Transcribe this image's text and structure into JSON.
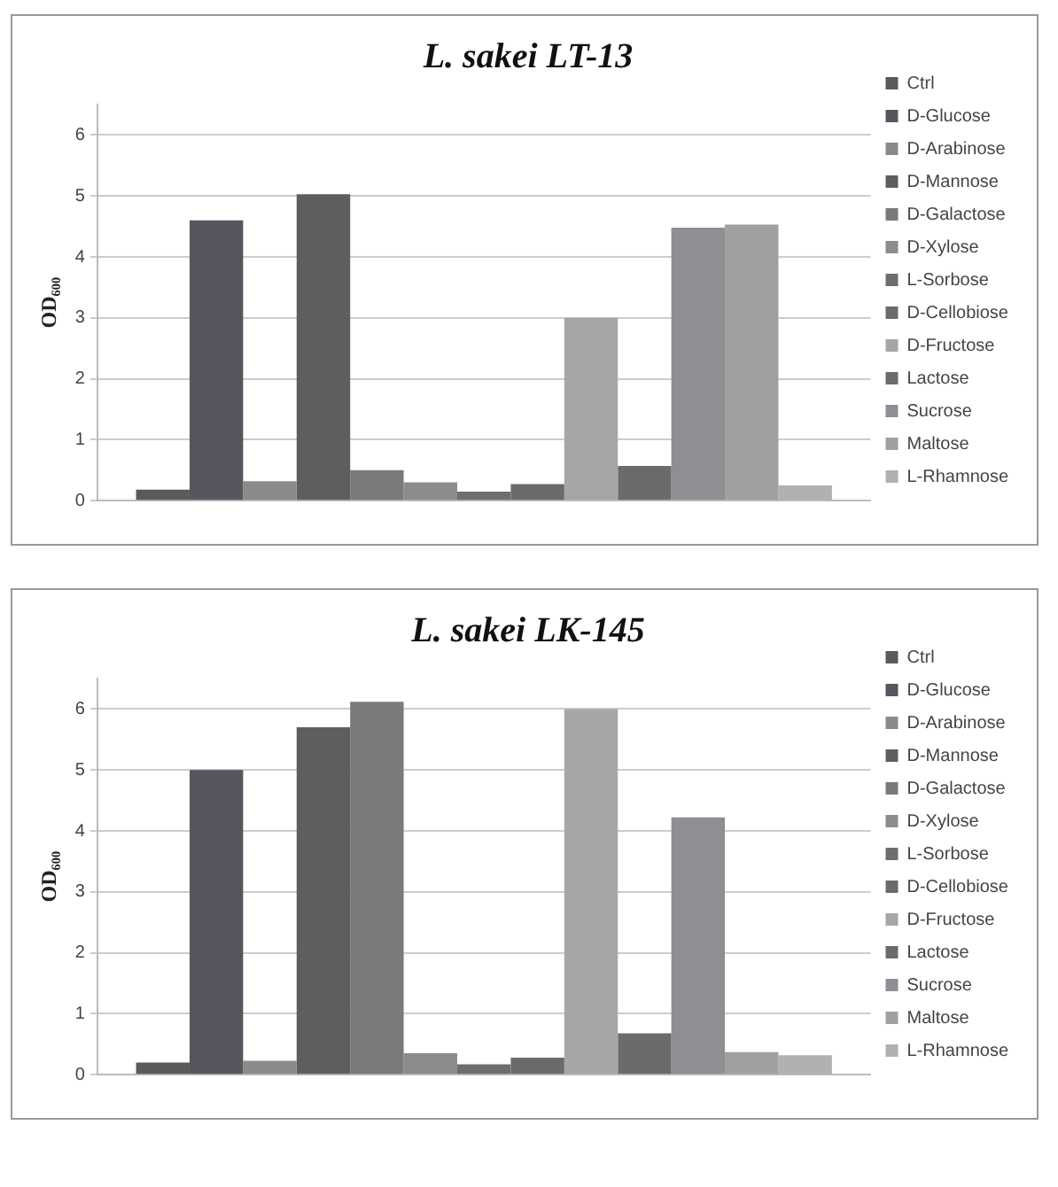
{
  "chart_data": [
    {
      "type": "bar",
      "title": "L. sakei LT-13",
      "ylabel": "OD₆₀₀",
      "categories": [
        null
      ],
      "ylim": [
        0,
        6.5
      ],
      "yticks": [
        0,
        1,
        2,
        3,
        4,
        5,
        6
      ],
      "grid": "y",
      "legend": "right",
      "series": [
        {
          "name": "Ctrl",
          "color": "#5a5a5a",
          "values": [
            0.18
          ]
        },
        {
          "name": "D-Glucose",
          "color": "#56565e",
          "values": [
            4.6
          ]
        },
        {
          "name": "D-Arabinose",
          "color": "#8a8a8a",
          "values": [
            0.32
          ]
        },
        {
          "name": "D-Mannose",
          "color": "#5e5e5e",
          "values": [
            5.03
          ]
        },
        {
          "name": "D-Galactose",
          "color": "#7a7a7a",
          "values": [
            0.5
          ]
        },
        {
          "name": "D-Xylose",
          "color": "#8c8c8c",
          "values": [
            0.3
          ]
        },
        {
          "name": "L-Sorbose",
          "color": "#6e6e6e",
          "values": [
            0.15
          ]
        },
        {
          "name": "D-Cellobiose",
          "color": "#6a6a6a",
          "values": [
            0.27
          ]
        },
        {
          "name": "D-Fructose",
          "color": "#a6a6a6",
          "values": [
            3.0
          ]
        },
        {
          "name": "Lactose",
          "color": "#6b6b6b",
          "values": [
            0.57
          ]
        },
        {
          "name": "Sucrose",
          "color": "#8e8e94",
          "values": [
            4.48
          ]
        },
        {
          "name": "Maltose",
          "color": "#a0a0a0",
          "values": [
            4.53
          ]
        },
        {
          "name": "L-Rhamnose",
          "color": "#b0b0b0",
          "values": [
            0.25
          ]
        }
      ]
    },
    {
      "type": "bar",
      "title": "L. sakei LK-145",
      "ylabel": "OD₆₀₀",
      "categories": [
        null
      ],
      "ylim": [
        0,
        6.5
      ],
      "yticks": [
        0,
        1,
        2,
        3,
        4,
        5,
        6
      ],
      "grid": "y",
      "legend": "right",
      "series": [
        {
          "name": "Ctrl",
          "color": "#5a5a5a",
          "values": [
            0.2
          ]
        },
        {
          "name": "D-Glucose",
          "color": "#56565e",
          "values": [
            5.0
          ]
        },
        {
          "name": "D-Arabinose",
          "color": "#8a8a8a",
          "values": [
            0.23
          ]
        },
        {
          "name": "D-Mannose",
          "color": "#5e5e5e",
          "values": [
            5.7
          ]
        },
        {
          "name": "D-Galactose",
          "color": "#7a7a7a",
          "values": [
            6.12
          ]
        },
        {
          "name": "D-Xylose",
          "color": "#8c8c8c",
          "values": [
            0.35
          ]
        },
        {
          "name": "L-Sorbose",
          "color": "#6e6e6e",
          "values": [
            0.17
          ]
        },
        {
          "name": "D-Cellobiose",
          "color": "#6a6a6a",
          "values": [
            0.28
          ]
        },
        {
          "name": "D-Fructose",
          "color": "#a6a6a6",
          "values": [
            6.0
          ]
        },
        {
          "name": "Lactose",
          "color": "#6b6b6b",
          "values": [
            0.68
          ]
        },
        {
          "name": "Sucrose",
          "color": "#8e8e94",
          "values": [
            4.22
          ]
        },
        {
          "name": "Maltose",
          "color": "#a0a0a0",
          "values": [
            0.37
          ]
        },
        {
          "name": "L-Rhamnose",
          "color": "#b0b0b0",
          "values": [
            0.32
          ]
        }
      ]
    }
  ]
}
